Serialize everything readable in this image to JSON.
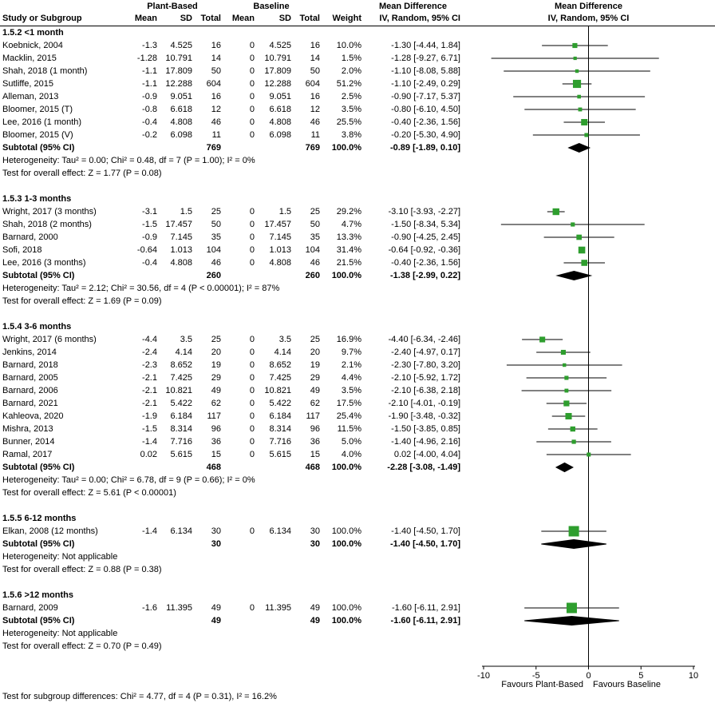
{
  "header": {
    "group1": "Plant-Based",
    "group2": "Baseline",
    "md_title": "Mean Difference",
    "md_subtitle": "IV, Random, 95% CI",
    "col_study": "Study or Subgroup",
    "col_mean": "Mean",
    "col_sd": "SD",
    "col_total": "Total",
    "col_weight": "Weight"
  },
  "footer": "Test for subgroup differences: Chi² = 4.77, df = 4 (P = 0.31), I² = 16.2%",
  "colors": {
    "square": "#2E9E2E",
    "diamond": "#000000",
    "line": "#000000",
    "text": "#000000",
    "background": "#FFFFFF"
  },
  "chart_data": {
    "type": "forest",
    "xlim": [
      -10,
      10
    ],
    "ticks": [
      -10,
      -5,
      0,
      5,
      10
    ],
    "favours_left": "Favours Plant-Based",
    "favours_right": "Favours Baseline",
    "effect_label": "Mean Difference",
    "model": "IV, Random, 95% CI",
    "subgroups": [
      {
        "label": "1.5.2 <1 month",
        "studies": [
          {
            "name": "Koebnick, 2004",
            "m1": "-1.3",
            "sd1": "4.525",
            "n1": "16",
            "m2": "0",
            "sd2": "4.525",
            "n2": "16",
            "w": "10.0%",
            "ci": "-1.30 [-4.44, 1.84]",
            "est": [
              -1.3,
              -4.44,
              1.84
            ]
          },
          {
            "name": "Macklin, 2015",
            "m1": "-1.28",
            "sd1": "10.791",
            "n1": "14",
            "m2": "0",
            "sd2": "10.791",
            "n2": "14",
            "w": "1.5%",
            "ci": "-1.28 [-9.27, 6.71]",
            "est": [
              -1.28,
              -9.27,
              6.71
            ]
          },
          {
            "name": "Shah, 2018 (1 month)",
            "m1": "-1.1",
            "sd1": "17.809",
            "n1": "50",
            "m2": "0",
            "sd2": "17.809",
            "n2": "50",
            "w": "2.0%",
            "ci": "-1.10 [-8.08, 5.88]",
            "est": [
              -1.1,
              -8.08,
              5.88
            ]
          },
          {
            "name": "Sutliffe, 2015",
            "m1": "-1.1",
            "sd1": "12.288",
            "n1": "604",
            "m2": "0",
            "sd2": "12.288",
            "n2": "604",
            "w": "51.2%",
            "ci": "-1.10 [-2.49, 0.29]",
            "est": [
              -1.1,
              -2.49,
              0.29
            ]
          },
          {
            "name": "Alleman, 2013",
            "m1": "-0.9",
            "sd1": "9.051",
            "n1": "16",
            "m2": "0",
            "sd2": "9.051",
            "n2": "16",
            "w": "2.5%",
            "ci": "-0.90 [-7.17, 5.37]",
            "est": [
              -0.9,
              -7.17,
              5.37
            ]
          },
          {
            "name": "Bloomer, 2015 (T)",
            "m1": "-0.8",
            "sd1": "6.618",
            "n1": "12",
            "m2": "0",
            "sd2": "6.618",
            "n2": "12",
            "w": "3.5%",
            "ci": "-0.80 [-6.10, 4.50]",
            "est": [
              -0.8,
              -6.1,
              4.5
            ]
          },
          {
            "name": "Lee, 2016 (1 month)",
            "m1": "-0.4",
            "sd1": "4.808",
            "n1": "46",
            "m2": "0",
            "sd2": "4.808",
            "n2": "46",
            "w": "25.5%",
            "ci": "-0.40 [-2.36, 1.56]",
            "est": [
              -0.4,
              -2.36,
              1.56
            ]
          },
          {
            "name": "Bloomer, 2015 (V)",
            "m1": "-0.2",
            "sd1": "6.098",
            "n1": "11",
            "m2": "0",
            "sd2": "6.098",
            "n2": "11",
            "w": "3.8%",
            "ci": "-0.20 [-5.30, 4.90]",
            "est": [
              -0.2,
              -5.3,
              4.9
            ]
          }
        ],
        "subtotal": {
          "label": "Subtotal (95% CI)",
          "n1": "769",
          "n2": "769",
          "w": "100.0%",
          "ci": "-0.89 [-1.89, 0.10]",
          "est": [
            -0.89,
            -1.89,
            0.1
          ]
        },
        "heterogeneity": "Heterogeneity: Tau² = 0.00; Chi² = 0.48, df = 7 (P = 1.00); I² = 0%",
        "overall": "Test for overall effect: Z = 1.77 (P = 0.08)"
      },
      {
        "label": "1.5.3 1-3 months",
        "studies": [
          {
            "name": "Wright, 2017 (3 months)",
            "m1": "-3.1",
            "sd1": "1.5",
            "n1": "25",
            "m2": "0",
            "sd2": "1.5",
            "n2": "25",
            "w": "29.2%",
            "ci": "-3.10 [-3.93, -2.27]",
            "est": [
              -3.1,
              -3.93,
              -2.27
            ]
          },
          {
            "name": "Shah, 2018 (2 months)",
            "m1": "-1.5",
            "sd1": "17.457",
            "n1": "50",
            "m2": "0",
            "sd2": "17.457",
            "n2": "50",
            "w": "4.7%",
            "ci": "-1.50 [-8.34, 5.34]",
            "est": [
              -1.5,
              -8.34,
              5.34
            ]
          },
          {
            "name": "Barnard, 2000",
            "m1": "-0.9",
            "sd1": "7.145",
            "n1": "35",
            "m2": "0",
            "sd2": "7.145",
            "n2": "35",
            "w": "13.3%",
            "ci": "-0.90 [-4.25, 2.45]",
            "est": [
              -0.9,
              -4.25,
              2.45
            ]
          },
          {
            "name": "Sofi, 2018",
            "m1": "-0.64",
            "sd1": "1.013",
            "n1": "104",
            "m2": "0",
            "sd2": "1.013",
            "n2": "104",
            "w": "31.4%",
            "ci": "-0.64 [-0.92, -0.36]",
            "est": [
              -0.64,
              -0.92,
              -0.36
            ]
          },
          {
            "name": "Lee, 2016 (3 months)",
            "m1": "-0.4",
            "sd1": "4.808",
            "n1": "46",
            "m2": "0",
            "sd2": "4.808",
            "n2": "46",
            "w": "21.5%",
            "ci": "-0.40 [-2.36, 1.56]",
            "est": [
              -0.4,
              -2.36,
              1.56
            ]
          }
        ],
        "subtotal": {
          "label": "Subtotal (95% CI)",
          "n1": "260",
          "n2": "260",
          "w": "100.0%",
          "ci": "-1.38 [-2.99, 0.22]",
          "est": [
            -1.38,
            -2.99,
            0.22
          ]
        },
        "heterogeneity": "Heterogeneity: Tau² = 2.12; Chi² = 30.56, df = 4 (P < 0.00001); I² = 87%",
        "overall": "Test for overall effect: Z = 1.69 (P = 0.09)"
      },
      {
        "label": "1.5.4 3-6 months",
        "studies": [
          {
            "name": "Wright, 2017 (6 months)",
            "m1": "-4.4",
            "sd1": "3.5",
            "n1": "25",
            "m2": "0",
            "sd2": "3.5",
            "n2": "25",
            "w": "16.9%",
            "ci": "-4.40 [-6.34, -2.46]",
            "est": [
              -4.4,
              -6.34,
              -2.46
            ]
          },
          {
            "name": "Jenkins, 2014",
            "m1": "-2.4",
            "sd1": "4.14",
            "n1": "20",
            "m2": "0",
            "sd2": "4.14",
            "n2": "20",
            "w": "9.7%",
            "ci": "-2.40 [-4.97, 0.17]",
            "est": [
              -2.4,
              -4.97,
              0.17
            ]
          },
          {
            "name": "Barnard, 2018",
            "m1": "-2.3",
            "sd1": "8.652",
            "n1": "19",
            "m2": "0",
            "sd2": "8.652",
            "n2": "19",
            "w": "2.1%",
            "ci": "-2.30 [-7.80, 3.20]",
            "est": [
              -2.3,
              -7.8,
              3.2
            ]
          },
          {
            "name": "Barnard, 2005",
            "m1": "-2.1",
            "sd1": "7.425",
            "n1": "29",
            "m2": "0",
            "sd2": "7.425",
            "n2": "29",
            "w": "4.4%",
            "ci": "-2.10 [-5.92, 1.72]",
            "est": [
              -2.1,
              -5.92,
              1.72
            ]
          },
          {
            "name": "Barnard, 2006",
            "m1": "-2.1",
            "sd1": "10.821",
            "n1": "49",
            "m2": "0",
            "sd2": "10.821",
            "n2": "49",
            "w": "3.5%",
            "ci": "-2.10 [-6.38, 2.18]",
            "est": [
              -2.1,
              -6.38,
              2.18
            ]
          },
          {
            "name": "Barnard, 2021",
            "m1": "-2.1",
            "sd1": "5.422",
            "n1": "62",
            "m2": "0",
            "sd2": "5.422",
            "n2": "62",
            "w": "17.5%",
            "ci": "-2.10 [-4.01, -0.19]",
            "est": [
              -2.1,
              -4.01,
              -0.19
            ]
          },
          {
            "name": "Kahleova, 2020",
            "m1": "-1.9",
            "sd1": "6.184",
            "n1": "117",
            "m2": "0",
            "sd2": "6.184",
            "n2": "117",
            "w": "25.4%",
            "ci": "-1.90 [-3.48, -0.32]",
            "est": [
              -1.9,
              -3.48,
              -0.32
            ]
          },
          {
            "name": "Mishra, 2013",
            "m1": "-1.5",
            "sd1": "8.314",
            "n1": "96",
            "m2": "0",
            "sd2": "8.314",
            "n2": "96",
            "w": "11.5%",
            "ci": "-1.50 [-3.85, 0.85]",
            "est": [
              -1.5,
              -3.85,
              0.85
            ]
          },
          {
            "name": "Bunner, 2014",
            "m1": "-1.4",
            "sd1": "7.716",
            "n1": "36",
            "m2": "0",
            "sd2": "7.716",
            "n2": "36",
            "w": "5.0%",
            "ci": "-1.40 [-4.96, 2.16]",
            "est": [
              -1.4,
              -4.96,
              2.16
            ]
          },
          {
            "name": "Ramal, 2017",
            "m1": "0.02",
            "sd1": "5.615",
            "n1": "15",
            "m2": "0",
            "sd2": "5.615",
            "n2": "15",
            "w": "4.0%",
            "ci": "0.02 [-4.00, 4.04]",
            "est": [
              0.02,
              -4.0,
              4.04
            ]
          }
        ],
        "subtotal": {
          "label": "Subtotal (95% CI)",
          "n1": "468",
          "n2": "468",
          "w": "100.0%",
          "ci": "-2.28 [-3.08, -1.49]",
          "est": [
            -2.28,
            -3.08,
            -1.49
          ]
        },
        "heterogeneity": "Heterogeneity: Tau² = 0.00; Chi² = 6.78, df = 9 (P = 0.66); I² = 0%",
        "overall": "Test for overall effect: Z = 5.61 (P < 0.00001)"
      },
      {
        "label": "1.5.5 6-12 months",
        "studies": [
          {
            "name": "Elkan, 2008 (12 months)",
            "m1": "-1.4",
            "sd1": "6.134",
            "n1": "30",
            "m2": "0",
            "sd2": "6.134",
            "n2": "30",
            "w": "100.0%",
            "ci": "-1.40 [-4.50, 1.70]",
            "est": [
              -1.4,
              -4.5,
              1.7
            ]
          }
        ],
        "subtotal": {
          "label": "Subtotal (95% CI)",
          "n1": "30",
          "n2": "30",
          "w": "100.0%",
          "ci": "-1.40 [-4.50, 1.70]",
          "est": [
            -1.4,
            -4.5,
            1.7
          ]
        },
        "heterogeneity": "Heterogeneity: Not applicable",
        "overall": "Test for overall effect: Z = 0.88 (P = 0.38)"
      },
      {
        "label": "1.5.6 >12 months",
        "studies": [
          {
            "name": "Barnard, 2009",
            "m1": "-1.6",
            "sd1": "11.395",
            "n1": "49",
            "m2": "0",
            "sd2": "11.395",
            "n2": "49",
            "w": "100.0%",
            "ci": "-1.60 [-6.11, 2.91]",
            "est": [
              -1.6,
              -6.11,
              2.91
            ]
          }
        ],
        "subtotal": {
          "label": "Subtotal (95% CI)",
          "n1": "49",
          "n2": "49",
          "w": "100.0%",
          "ci": "-1.60 [-6.11, 2.91]",
          "est": [
            -1.6,
            -6.11,
            2.91
          ]
        },
        "heterogeneity": "Heterogeneity: Not applicable",
        "overall": "Test for overall effect: Z = 0.70 (P = 0.49)"
      }
    ]
  }
}
